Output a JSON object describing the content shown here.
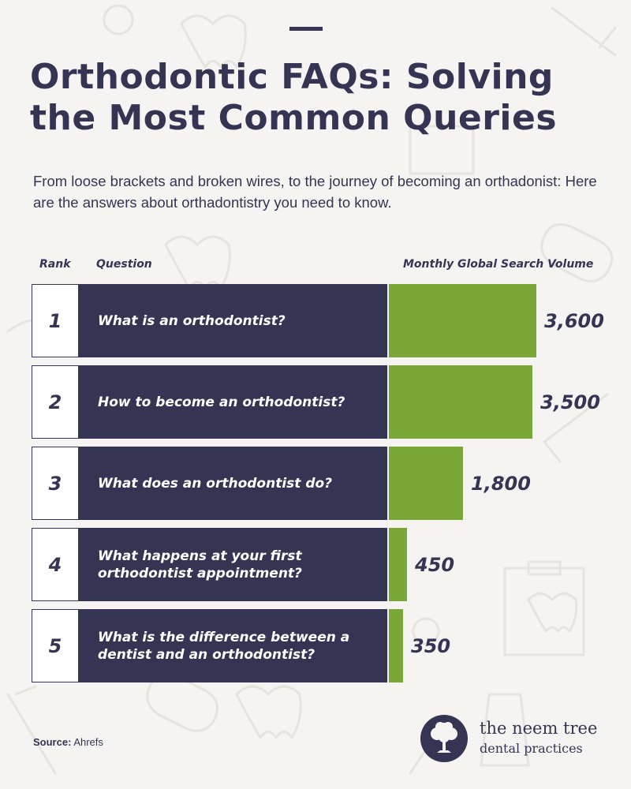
{
  "title": "Orthodontic FAQs: Solving the Most Common Queries",
  "subtitle": "From loose brackets and broken wires, to the journey of becoming an orthadonist: Here are the answers about orthadontistry you need to know.",
  "headers": {
    "rank": "Rank",
    "question": "Question",
    "volume": "Monthly Global Search Volume"
  },
  "rows": [
    {
      "rank": "1",
      "question": "What is an orthodontist?",
      "value_label": "3,600"
    },
    {
      "rank": "2",
      "question": "How to become an orthodontist?",
      "value_label": "3,500"
    },
    {
      "rank": "3",
      "question": "What does an orthodontist do?",
      "value_label": "1,800"
    },
    {
      "rank": "4",
      "question": "What happens at your first orthodontist appointment?",
      "value_label": "450"
    },
    {
      "rank": "5",
      "question": "What is the difference between a dentist and an orthodontist?",
      "value_label": "350"
    }
  ],
  "source": {
    "label": "Source:",
    "value": "Ahrefs"
  },
  "logo": {
    "name": "the neem tree",
    "sub": "dental practices"
  },
  "colors": {
    "navy": "#353553",
    "green": "#7aa838",
    "background": "#f6f4f2"
  },
  "chart_data": {
    "type": "bar",
    "orientation": "horizontal",
    "title": "Orthodontic FAQs: Solving the Most Common Queries",
    "xlabel": "Monthly Global Search Volume",
    "ylabel": "Question",
    "categories": [
      "What is an orthodontist?",
      "How to become an orthodontist?",
      "What does an orthodontist do?",
      "What happens at your first orthodontist appointment?",
      "What is the difference between a dentist and an orthodontist?"
    ],
    "values": [
      3600,
      3500,
      1800,
      450,
      350
    ],
    "grid": false,
    "legend": "none"
  }
}
